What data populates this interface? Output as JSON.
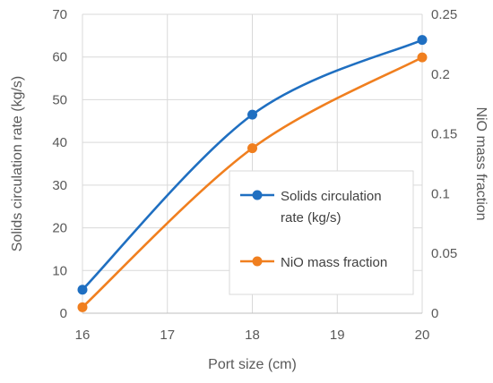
{
  "chart_data": {
    "type": "line",
    "title": "",
    "xlabel": "Port size (cm)",
    "ylabel": "Solids circulation rate (kg/s)",
    "y2label": "NiO mass fraction",
    "x": [
      16,
      18,
      20
    ],
    "xlim": [
      16,
      20
    ],
    "xticks": [
      16,
      17,
      18,
      19,
      20
    ],
    "ylim": [
      0,
      70
    ],
    "yticks": [
      0,
      10,
      20,
      30,
      40,
      50,
      60,
      70
    ],
    "y2lim": [
      0,
      0.25
    ],
    "y2ticks": [
      "0",
      "0.05",
      "0.1",
      "0.15",
      "0.2",
      "0.25"
    ],
    "grid": "horizontal and vertical",
    "legend_position": "right-center inside plot",
    "series": [
      {
        "name": "Solids circulation rate (kg/s)",
        "legend_lines": [
          "Solids circulation",
          "rate (kg/s)"
        ],
        "axis": "left",
        "color": "#1f6fc1",
        "values": [
          5.5,
          46.5,
          64
        ]
      },
      {
        "name": "NiO mass fraction",
        "legend_lines": [
          "NiO mass fraction"
        ],
        "axis": "right",
        "color": "#f07f1f",
        "values": [
          0.005,
          0.138,
          0.214
        ]
      }
    ]
  }
}
